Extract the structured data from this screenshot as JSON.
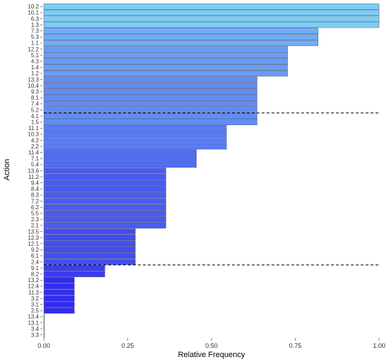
{
  "chart_data": {
    "type": "bar",
    "orientation": "horizontal",
    "title": "",
    "xlabel": "Relative Frequency",
    "ylabel": "Action",
    "xlim": [
      0,
      1
    ],
    "x_ticks": [
      "0.00",
      "0.25",
      "0.50",
      "0.75",
      "1.00"
    ],
    "grid": false,
    "legend": "none",
    "categories": [
      "10.2",
      "10.1",
      "6.3",
      "1.3",
      "7.3",
      "5.3",
      "1.1",
      "12.2",
      "5.1",
      "4.3",
      "1.4",
      "1.2",
      "13.3",
      "10.4",
      "9.3",
      "8.1",
      "7.4",
      "5.2",
      "4.1",
      "1.5",
      "11.1",
      "10.3",
      "4.2",
      "2.2",
      "11.4",
      "7.1",
      "5.4",
      "13.6",
      "11.2",
      "9.4",
      "8.4",
      "8.3",
      "7.2",
      "6.2",
      "5.5",
      "2.3",
      "2.1",
      "13.5",
      "12.3",
      "12.1",
      "9.2",
      "6.1",
      "2.4",
      "9.1",
      "8.2",
      "13.2",
      "12.4",
      "11.3",
      "3.2",
      "3.1",
      "2.5",
      "13.4",
      "13.1",
      "3.4",
      "3.3"
    ],
    "values": [
      1.0,
      1.0,
      1.0,
      1.0,
      0.818,
      0.818,
      0.818,
      0.727,
      0.727,
      0.727,
      0.727,
      0.727,
      0.636,
      0.636,
      0.636,
      0.636,
      0.636,
      0.636,
      0.636,
      0.636,
      0.545,
      0.545,
      0.545,
      0.545,
      0.455,
      0.455,
      0.455,
      0.364,
      0.364,
      0.364,
      0.364,
      0.364,
      0.364,
      0.364,
      0.364,
      0.364,
      0.364,
      0.273,
      0.273,
      0.273,
      0.273,
      0.273,
      0.273,
      0.182,
      0.182,
      0.091,
      0.091,
      0.091,
      0.091,
      0.091,
      0.091,
      0.0,
      0.0,
      0.0,
      0.0
    ],
    "reference_lines": [
      {
        "style": "dashed",
        "between": [
          "5.2",
          "4.1"
        ]
      },
      {
        "style": "dashed",
        "between": [
          "2.4",
          "9.1"
        ]
      }
    ],
    "colors": {
      "high": "#7fcdf5",
      "low": "#2a1cf0",
      "bar_outline": "#5a5a7a",
      "reference_line": "#000000",
      "axis": "#333333"
    }
  }
}
